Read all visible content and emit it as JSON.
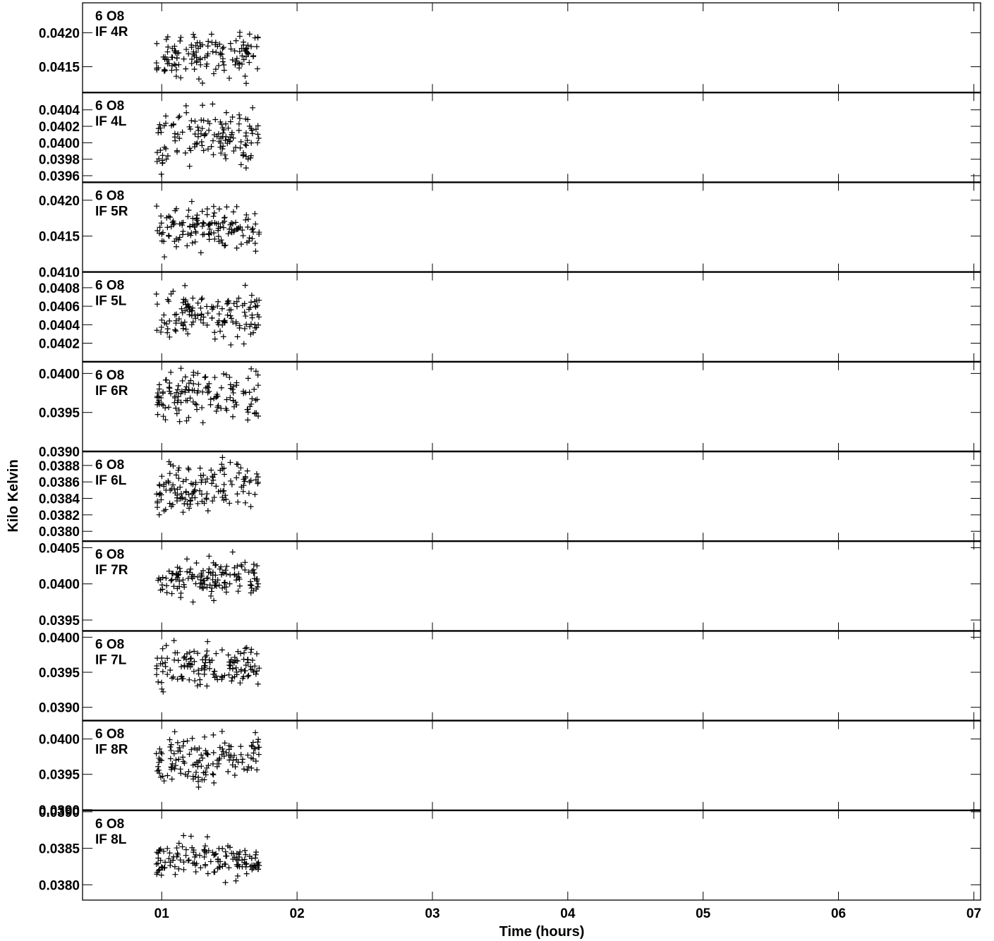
{
  "chart_data": {
    "type": "scatter",
    "marker": "+",
    "marker_color": "#000000",
    "xlabel": "Time (hours)",
    "ylabel": "Kilo Kelvin",
    "x_tick_labels": [
      "01",
      "02",
      "03",
      "04",
      "05",
      "06",
      "07"
    ],
    "x_ticks": [
      1,
      2,
      3,
      4,
      5,
      6,
      7
    ],
    "xlim": [
      0.415,
      7.05
    ],
    "panels": [
      {
        "source": "6 O8",
        "if": "IF 4R",
        "ylim": [
          0.04112,
          0.04244
        ],
        "y_ticks": [
          0.0415,
          0.042
        ],
        "y_tick_labels": [
          "0.0415",
          "0.0420"
        ],
        "y_center": 0.04168,
        "y_spread": 0.00018
      },
      {
        "source": "6 O8",
        "if": "IF 4L",
        "ylim": [
          0.03952,
          0.04061
        ],
        "y_ticks": [
          0.0396,
          0.0398,
          0.04,
          0.0402,
          0.0404
        ],
        "y_tick_labels": [
          "0.0396",
          "0.0398",
          "0.0400",
          "0.0402",
          "0.0404"
        ],
        "y_center": 0.04006,
        "y_spread": 0.00018
      },
      {
        "source": "6 O8",
        "if": "IF 5R",
        "ylim": [
          0.041,
          0.04225
        ],
        "y_ticks": [
          0.041,
          0.0415,
          0.042
        ],
        "y_tick_labels": [
          "0.0410",
          "0.0415",
          "0.0420"
        ],
        "y_center": 0.04162,
        "y_spread": 0.00017
      },
      {
        "source": "6 O8",
        "if": "IF 5L",
        "ylim": [
          0.04,
          0.04097
        ],
        "y_ticks": [
          0.0402,
          0.0404,
          0.0406,
          0.0408
        ],
        "y_tick_labels": [
          "0.0402",
          "0.0404",
          "0.0406",
          "0.0408"
        ],
        "y_center": 0.04052,
        "y_spread": 0.00014
      },
      {
        "source": "6 O8",
        "if": "IF 6R",
        "ylim": [
          0.039,
          0.04015
        ],
        "y_ticks": [
          0.039,
          0.0395,
          0.04
        ],
        "y_tick_labels": [
          "0.0390",
          "0.0395",
          "0.0400"
        ],
        "y_center": 0.03972,
        "y_spread": 0.00017
      },
      {
        "source": "6 O8",
        "if": "IF 6L",
        "ylim": [
          0.03788,
          0.03897
        ],
        "y_ticks": [
          0.038,
          0.0382,
          0.0384,
          0.0386,
          0.0388
        ],
        "y_tick_labels": [
          "0.0380",
          "0.0382",
          "0.0384",
          "0.0386",
          "0.0388"
        ],
        "y_center": 0.03855,
        "y_spread": 0.00017
      },
      {
        "source": "6 O8",
        "if": "IF 7R",
        "ylim": [
          0.03935,
          0.04059
        ],
        "y_ticks": [
          0.0395,
          0.04,
          0.0405
        ],
        "y_tick_labels": [
          "0.0395",
          "0.0400",
          "0.0405"
        ],
        "y_center": 0.04008,
        "y_spread": 0.00015
      },
      {
        "source": "6 O8",
        "if": "IF 7L",
        "ylim": [
          0.03881,
          0.04009
        ],
        "y_ticks": [
          0.039,
          0.0395,
          0.04
        ],
        "y_tick_labels": [
          "0.0390",
          "0.0395",
          "0.0400"
        ],
        "y_center": 0.03958,
        "y_spread": 0.00016
      },
      {
        "source": "6 O8",
        "if": "IF 8R",
        "ylim": [
          0.03899,
          0.04026
        ],
        "y_ticks": [
          0.039,
          0.0395,
          0.04
        ],
        "y_tick_labels": [
          "0.0390",
          "0.0395",
          "0.0400"
        ],
        "y_center": 0.03973,
        "y_spread": 0.00017
      },
      {
        "source": "6 O8",
        "if": "IF 8L",
        "ylim": [
          0.03779,
          0.03902
        ],
        "y_ticks": [
          0.038,
          0.0385,
          0.039
        ],
        "y_tick_labels": [
          "0.0380",
          "0.0385",
          "0.0390"
        ],
        "y_center": 0.03835,
        "y_spread": 0.00015
      }
    ]
  }
}
